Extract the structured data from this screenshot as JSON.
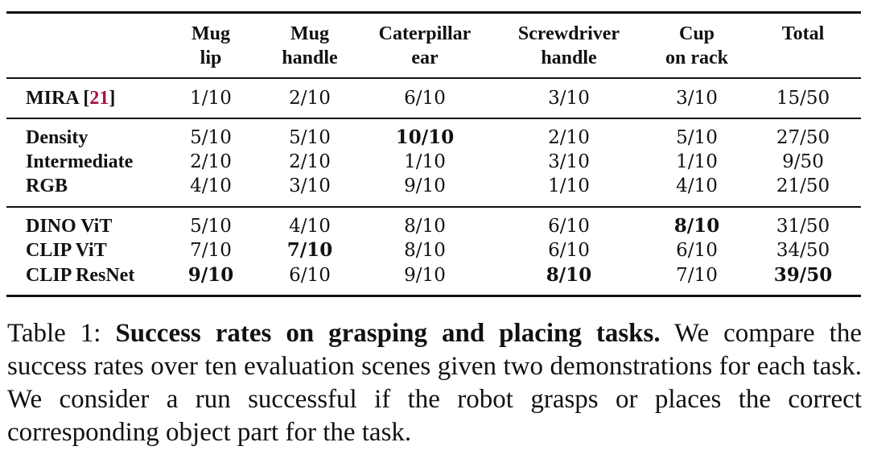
{
  "table": {
    "columns": [
      {
        "line1": "Mug",
        "line2": "lip"
      },
      {
        "line1": "Mug",
        "line2": "handle"
      },
      {
        "line1": "Caterpillar",
        "line2": "ear"
      },
      {
        "line1": "Screwdriver",
        "line2": "handle"
      },
      {
        "line1": "Cup",
        "line2": "on rack"
      },
      {
        "line1": "Total",
        "line2": ""
      }
    ],
    "groups": [
      {
        "rows": [
          {
            "label": "MIRA [",
            "cite": "21",
            "label_end": "]",
            "values": [
              "1/10",
              "2/10",
              "6/10",
              "3/10",
              "3/10",
              "15/50"
            ],
            "bold": []
          }
        ]
      },
      {
        "rows": [
          {
            "label": "Density",
            "values": [
              "5/10",
              "5/10",
              "10/10",
              "2/10",
              "5/10",
              "27/50"
            ],
            "bold": [
              2
            ]
          },
          {
            "label": "Intermediate",
            "values": [
              "2/10",
              "2/10",
              "1/10",
              "3/10",
              "1/10",
              "9/50"
            ],
            "bold": []
          },
          {
            "label": "RGB",
            "values": [
              "4/10",
              "3/10",
              "9/10",
              "1/10",
              "4/10",
              "21/50"
            ],
            "bold": []
          }
        ]
      },
      {
        "rows": [
          {
            "label": "DINO ViT",
            "values": [
              "5/10",
              "4/10",
              "8/10",
              "6/10",
              "8/10",
              "31/50"
            ],
            "bold": [
              4
            ]
          },
          {
            "label": "CLIP ViT",
            "values": [
              "7/10",
              "7/10",
              "8/10",
              "6/10",
              "6/10",
              "34/50"
            ],
            "bold": [
              1
            ]
          },
          {
            "label": "CLIP ResNet",
            "values": [
              "9/10",
              "6/10",
              "9/10",
              "8/10",
              "7/10",
              "39/50"
            ],
            "bold": [
              0,
              3,
              5
            ]
          }
        ]
      }
    ]
  },
  "caption": {
    "prefix": "Table 1: ",
    "title": "Success rates on grasping and placing tasks.",
    "body": " We compare the success rates over ten evaluation scenes given two demonstrations for each task.  We consider a run successful if the robot grasps or places the correct corresponding object part for the task."
  }
}
